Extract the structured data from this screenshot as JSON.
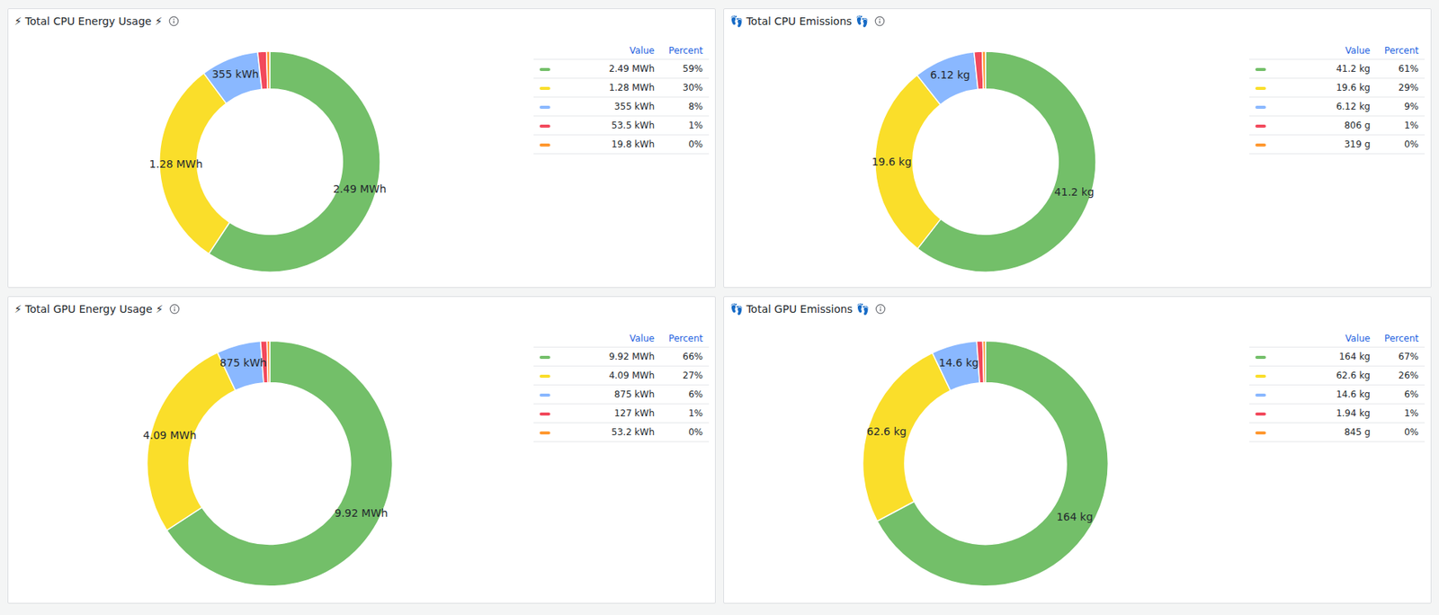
{
  "chart_data": [
    {
      "type": "pie",
      "title": "⚡ Total CPU Energy Usage ⚡",
      "values": [
        2490,
        1280,
        355,
        53.5,
        19.8
      ],
      "value_labels": [
        "2.49 MWh",
        "1.28 MWh",
        "355 kWh",
        "53.5 kWh",
        "19.8 kWh"
      ],
      "percent_labels": [
        "59%",
        "30%",
        "8%",
        "1%",
        "0%"
      ],
      "slice_labels": [
        "2.49 MWh",
        "1.28 MWh",
        "355 kWh",
        null,
        null
      ],
      "colors": [
        "#73bf69",
        "#fade2a",
        "#8ab8ff",
        "#f2495c",
        "#ff9830"
      ],
      "legend_headers": [
        "Value",
        "Percent"
      ],
      "legend": "right",
      "data_labels": true
    },
    {
      "type": "pie",
      "title": "👣 Total CPU Emissions 👣",
      "values": [
        41.2,
        19.6,
        6.12,
        0.806,
        0.319
      ],
      "value_labels": [
        "41.2 kg",
        "19.6 kg",
        "6.12 kg",
        "806 g",
        "319 g"
      ],
      "percent_labels": [
        "61%",
        "29%",
        "9%",
        "1%",
        "0%"
      ],
      "slice_labels": [
        "41.2 kg",
        "19.6 kg",
        "6.12 kg",
        null,
        null
      ],
      "colors": [
        "#73bf69",
        "#fade2a",
        "#8ab8ff",
        "#f2495c",
        "#ff9830"
      ],
      "legend_headers": [
        "Value",
        "Percent"
      ],
      "legend": "right",
      "data_labels": true
    },
    {
      "type": "pie",
      "title": "⚡ Total GPU Energy Usage ⚡",
      "values": [
        9920,
        4090,
        875,
        127,
        53.2
      ],
      "value_labels": [
        "9.92 MWh",
        "4.09 MWh",
        "875 kWh",
        "127 kWh",
        "53.2 kWh"
      ],
      "percent_labels": [
        "66%",
        "27%",
        "6%",
        "1%",
        "0%"
      ],
      "slice_labels": [
        "9.92 MWh",
        "4.09 MWh",
        "875 kWh",
        null,
        null
      ],
      "colors": [
        "#73bf69",
        "#fade2a",
        "#8ab8ff",
        "#f2495c",
        "#ff9830"
      ],
      "legend_headers": [
        "Value",
        "Percent"
      ],
      "legend": "right",
      "data_labels": true
    },
    {
      "type": "pie",
      "title": "👣 Total GPU Emissions 👣",
      "values": [
        164,
        62.6,
        14.6,
        1.94,
        0.845
      ],
      "value_labels": [
        "164 kg",
        "62.6 kg",
        "14.6 kg",
        "1.94 kg",
        "845 g"
      ],
      "percent_labels": [
        "67%",
        "26%",
        "6%",
        "1%",
        "0%"
      ],
      "slice_labels": [
        "164 kg",
        "62.6 kg",
        "14.6 kg",
        null,
        null
      ],
      "colors": [
        "#73bf69",
        "#fade2a",
        "#8ab8ff",
        "#f2495c",
        "#ff9830"
      ],
      "legend_headers": [
        "Value",
        "Percent"
      ],
      "legend": "right",
      "data_labels": true
    }
  ]
}
